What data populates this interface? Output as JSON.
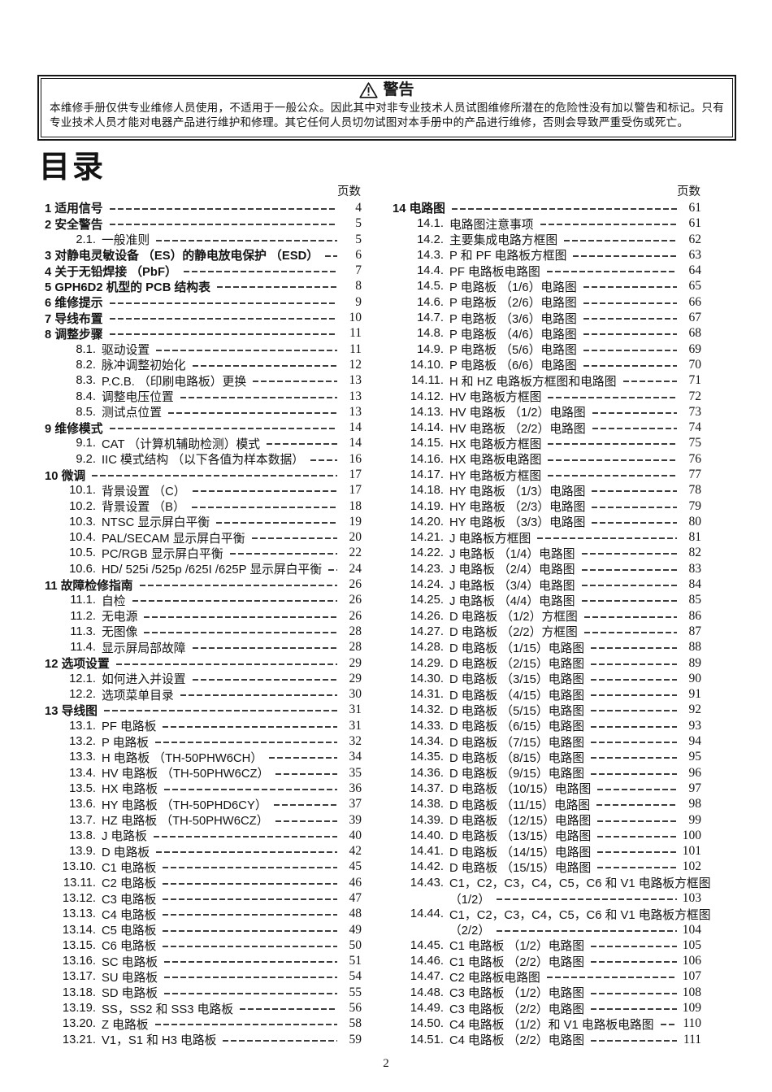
{
  "page": {
    "number": "2"
  },
  "warning": {
    "icon": "warning-triangle-icon",
    "title": "警告",
    "body": "本维修手册仅供专业维修人员使用，不适用于一般公众。因此其中对非专业技术人员试图维修所潜在的危险性没有加以警告和标记。只有专业技术人员才能对电器产品进行维护和修理。其它任何人员切勿试图对本手册中的产品进行维修，否则会导致严重受伤或死亡。"
  },
  "toc": {
    "title": "目录",
    "page_header": "页数",
    "left": [
      {
        "n": "1",
        "t": "适用信号",
        "p": "4",
        "l": 1
      },
      {
        "n": "2",
        "t": "安全警告",
        "p": "5",
        "l": 1
      },
      {
        "n": "2.1.",
        "t": "一般准则",
        "p": "5",
        "l": 2
      },
      {
        "n": "3",
        "t": "对静电灵敏设备 （ES）的静电放电保护 （ESD）",
        "p": "6",
        "l": 1
      },
      {
        "n": "4",
        "t": "关于无铅焊接 （PbF）",
        "p": "7",
        "l": 1
      },
      {
        "n": "5",
        "t": "GPH6D2 机型的 PCB 结构表",
        "p": "8",
        "l": 1
      },
      {
        "n": "6",
        "t": "维修提示",
        "p": "9",
        "l": 1
      },
      {
        "n": "7",
        "t": "导线布置",
        "p": "10",
        "l": 1
      },
      {
        "n": "8",
        "t": "调整步骤",
        "p": "11",
        "l": 1
      },
      {
        "n": "8.1.",
        "t": "驱动设置",
        "p": "11",
        "l": 2
      },
      {
        "n": "8.2.",
        "t": "脉冲调整初始化",
        "p": "12",
        "l": 2
      },
      {
        "n": "8.3.",
        "t": "P.C.B. （印刷电路板）更换",
        "p": "13",
        "l": 2
      },
      {
        "n": "8.4.",
        "t": "调整电压位置",
        "p": "13",
        "l": 2
      },
      {
        "n": "8.5.",
        "t": "测试点位置",
        "p": "13",
        "l": 2
      },
      {
        "n": "9",
        "t": "维修模式",
        "p": "14",
        "l": 1
      },
      {
        "n": "9.1.",
        "t": "CAT （计算机辅助检测）模式",
        "p": "14",
        "l": 2
      },
      {
        "n": "9.2.",
        "t": "IIC 模式结构 （以下各值为样本数据）",
        "p": "16",
        "l": 2
      },
      {
        "n": "10",
        "t": "微调",
        "p": "17",
        "l": 1
      },
      {
        "n": "10.1.",
        "t": "背景设置 （C）",
        "p": "17",
        "l": 2
      },
      {
        "n": "10.2.",
        "t": "背景设置 （B）",
        "p": "18",
        "l": 2
      },
      {
        "n": "10.3.",
        "t": "NTSC 显示屏白平衡",
        "p": "19",
        "l": 2
      },
      {
        "n": "10.4.",
        "t": "PAL/SECAM 显示屏白平衡",
        "p": "20",
        "l": 2
      },
      {
        "n": "10.5.",
        "t": "PC/RGB 显示屏白平衡",
        "p": "22",
        "l": 2
      },
      {
        "n": "10.6.",
        "t": "HD/ 525i /525p /625I /625P 显示屏白平衡",
        "p": "24",
        "l": 2
      },
      {
        "n": "11",
        "t": "故障检修指南",
        "p": "26",
        "l": 1
      },
      {
        "n": "11.1.",
        "t": "自检",
        "p": "26",
        "l": 2
      },
      {
        "n": "11.2.",
        "t": "无电源",
        "p": "26",
        "l": 2
      },
      {
        "n": "11.3.",
        "t": "无图像",
        "p": "28",
        "l": 2
      },
      {
        "n": "11.4.",
        "t": "显示屏局部故障",
        "p": "28",
        "l": 2
      },
      {
        "n": "12",
        "t": "选项设置",
        "p": "29",
        "l": 1
      },
      {
        "n": "12.1.",
        "t": "如何进入并设置",
        "p": "29",
        "l": 2
      },
      {
        "n": "12.2.",
        "t": "选项菜单目录",
        "p": "30",
        "l": 2
      },
      {
        "n": "13",
        "t": "导线图",
        "p": "31",
        "l": 1
      },
      {
        "n": "13.1.",
        "t": "PF 电路板",
        "p": "31",
        "l": 2
      },
      {
        "n": "13.2.",
        "t": "P 电路板",
        "p": "32",
        "l": 2
      },
      {
        "n": "13.3.",
        "t": "H 电路板 （TH-50PHW6CH）",
        "p": "34",
        "l": 2
      },
      {
        "n": "13.4.",
        "t": "HV 电路板 （TH-50PHW6CZ）",
        "p": "35",
        "l": 2
      },
      {
        "n": "13.5.",
        "t": "HX 电路板",
        "p": "36",
        "l": 2
      },
      {
        "n": "13.6.",
        "t": "HY 电路板 （TH-50PHD6CY）",
        "p": "37",
        "l": 2
      },
      {
        "n": "13.7.",
        "t": "HZ 电路板 （TH-50PHW6CZ）",
        "p": "39",
        "l": 2
      },
      {
        "n": "13.8.",
        "t": "J 电路板",
        "p": "40",
        "l": 2
      },
      {
        "n": "13.9.",
        "t": "D 电路板",
        "p": "42",
        "l": 2
      },
      {
        "n": "13.10.",
        "t": "C1 电路板",
        "p": "45",
        "l": 2
      },
      {
        "n": "13.11.",
        "t": "C2 电路板",
        "p": "46",
        "l": 2
      },
      {
        "n": "13.12.",
        "t": "C3 电路板",
        "p": "47",
        "l": 2
      },
      {
        "n": "13.13.",
        "t": "C4 电路板",
        "p": "48",
        "l": 2
      },
      {
        "n": "13.14.",
        "t": "C5 电路板",
        "p": "49",
        "l": 2
      },
      {
        "n": "13.15.",
        "t": "C6 电路板",
        "p": "50",
        "l": 2
      },
      {
        "n": "13.16.",
        "t": "SC 电路板",
        "p": "51",
        "l": 2
      },
      {
        "n": "13.17.",
        "t": "SU 电路板",
        "p": "54",
        "l": 2
      },
      {
        "n": "13.18.",
        "t": "SD 电路板",
        "p": "55",
        "l": 2
      },
      {
        "n": "13.19.",
        "t": "SS，SS2 和 SS3 电路板",
        "p": "56",
        "l": 2
      },
      {
        "n": "13.20.",
        "t": "Z 电路板",
        "p": "58",
        "l": 2
      },
      {
        "n": "13.21.",
        "t": "V1，S1 和 H3 电路板",
        "p": "59",
        "l": 2
      }
    ],
    "right": [
      {
        "n": "14",
        "t": "电路图",
        "p": "61",
        "l": 1
      },
      {
        "n": "14.1.",
        "t": "电路图注意事项",
        "p": "61",
        "l": 2
      },
      {
        "n": "14.2.",
        "t": "主要集成电路方框图",
        "p": "62",
        "l": 2
      },
      {
        "n": "14.3.",
        "t": "P 和 PF 电路板方框图",
        "p": "63",
        "l": 2
      },
      {
        "n": "14.4.",
        "t": "PF 电路板电路图",
        "p": "64",
        "l": 2
      },
      {
        "n": "14.5.",
        "t": "P 电路板 （1/6）电路图",
        "p": "65",
        "l": 2
      },
      {
        "n": "14.6.",
        "t": "P 电路板 （2/6）电路图",
        "p": "66",
        "l": 2
      },
      {
        "n": "14.7.",
        "t": "P 电路板 （3/6）电路图",
        "p": "67",
        "l": 2
      },
      {
        "n": "14.8.",
        "t": "P 电路板 （4/6）电路图",
        "p": "68",
        "l": 2
      },
      {
        "n": "14.9.",
        "t": "P 电路板 （5/6）电路图",
        "p": "69",
        "l": 2
      },
      {
        "n": "14.10.",
        "t": "P 电路板 （6/6）电路图",
        "p": "70",
        "l": 2
      },
      {
        "n": "14.11.",
        "t": "H 和 HZ 电路板方框图和电路图",
        "p": "71",
        "l": 2
      },
      {
        "n": "14.12.",
        "t": "HV 电路板方框图",
        "p": "72",
        "l": 2
      },
      {
        "n": "14.13.",
        "t": "HV 电路板 （1/2）电路图",
        "p": "73",
        "l": 2
      },
      {
        "n": "14.14.",
        "t": "HV 电路板 （2/2）电路图",
        "p": "74",
        "l": 2
      },
      {
        "n": "14.15.",
        "t": "HX 电路板方框图",
        "p": "75",
        "l": 2
      },
      {
        "n": "14.16.",
        "t": "HX 电路板电路图",
        "p": "76",
        "l": 2
      },
      {
        "n": "14.17.",
        "t": "HY 电路板方框图",
        "p": "77",
        "l": 2
      },
      {
        "n": "14.18.",
        "t": "HY 电路板 （1/3）电路图",
        "p": "78",
        "l": 2
      },
      {
        "n": "14.19.",
        "t": "HY 电路板 （2/3）电路图",
        "p": "79",
        "l": 2
      },
      {
        "n": "14.20.",
        "t": "HY 电路板 （3/3）电路图",
        "p": "80",
        "l": 2
      },
      {
        "n": "14.21.",
        "t": "J 电路板方框图",
        "p": "81",
        "l": 2
      },
      {
        "n": "14.22.",
        "t": "J 电路板 （1/4）电路图",
        "p": "82",
        "l": 2
      },
      {
        "n": "14.23.",
        "t": "J 电路板 （2/4）电路图",
        "p": "83",
        "l": 2
      },
      {
        "n": "14.24.",
        "t": "J 电路板 （3/4）电路图",
        "p": "84",
        "l": 2
      },
      {
        "n": "14.25.",
        "t": "J 电路板 （4/4）电路图",
        "p": "85",
        "l": 2
      },
      {
        "n": "14.26.",
        "t": "D 电路板 （1/2）方框图",
        "p": "86",
        "l": 2
      },
      {
        "n": "14.27.",
        "t": "D 电路板 （2/2）方框图",
        "p": "87",
        "l": 2
      },
      {
        "n": "14.28.",
        "t": "D 电路板 （1/15）电路图",
        "p": "88",
        "l": 2
      },
      {
        "n": "14.29.",
        "t": "D 电路板 （2/15）电路图",
        "p": "89",
        "l": 2
      },
      {
        "n": "14.30.",
        "t": "D 电路板 （3/15）电路图",
        "p": "90",
        "l": 2
      },
      {
        "n": "14.31.",
        "t": "D 电路板 （4/15）电路图",
        "p": "91",
        "l": 2
      },
      {
        "n": "14.32.",
        "t": "D 电路板 （5/15）电路图",
        "p": "92",
        "l": 2
      },
      {
        "n": "14.33.",
        "t": "D 电路板 （6/15）电路图",
        "p": "93",
        "l": 2
      },
      {
        "n": "14.34.",
        "t": "D 电路板 （7/15）电路图",
        "p": "94",
        "l": 2
      },
      {
        "n": "14.35.",
        "t": "D 电路板 （8/15）电路图",
        "p": "95",
        "l": 2
      },
      {
        "n": "14.36.",
        "t": "D 电路板 （9/15）电路图",
        "p": "96",
        "l": 2
      },
      {
        "n": "14.37.",
        "t": "D 电路板 （10/15）电路图",
        "p": "97",
        "l": 2
      },
      {
        "n": "14.38.",
        "t": "D 电路板 （11/15）电路图",
        "p": "98",
        "l": 2
      },
      {
        "n": "14.39.",
        "t": "D 电路板 （12/15）电路图",
        "p": "99",
        "l": 2
      },
      {
        "n": "14.40.",
        "t": "D 电路板 （13/15）电路图",
        "p": "100",
        "l": 2
      },
      {
        "n": "14.41.",
        "t": "D 电路板 （14/15）电路图",
        "p": "101",
        "l": 2
      },
      {
        "n": "14.42.",
        "t": "D 电路板 （15/15）电路图",
        "p": "102",
        "l": 2
      },
      {
        "n": "14.43.",
        "t": "C1，C2，C3，C4，C5，C6 和 V1 电路板方框图",
        "c": "（1/2）",
        "p": "103",
        "l": 2
      },
      {
        "n": "14.44.",
        "t": "C1，C2，C3，C4，C5，C6 和 V1 电路板方框图",
        "c": "（2/2）",
        "p": "104",
        "l": 2
      },
      {
        "n": "14.45.",
        "t": "C1 电路板 （1/2）电路图",
        "p": "105",
        "l": 2
      },
      {
        "n": "14.46.",
        "t": "C1 电路板 （2/2）电路图",
        "p": "106",
        "l": 2
      },
      {
        "n": "14.47.",
        "t": "C2 电路板电路图",
        "p": "107",
        "l": 2
      },
      {
        "n": "14.48.",
        "t": "C3 电路板 （1/2）电路图",
        "p": "108",
        "l": 2
      },
      {
        "n": "14.49.",
        "t": "C3 电路板 （2/2）电路图",
        "p": "109",
        "l": 2
      },
      {
        "n": "14.50.",
        "t": "C4 电路板 （1/2）和 V1 电路板电路图",
        "p": "110",
        "l": 2
      },
      {
        "n": "14.51.",
        "t": "C4 电路板 （2/2）电路图",
        "p": "111",
        "l": 2
      }
    ]
  }
}
